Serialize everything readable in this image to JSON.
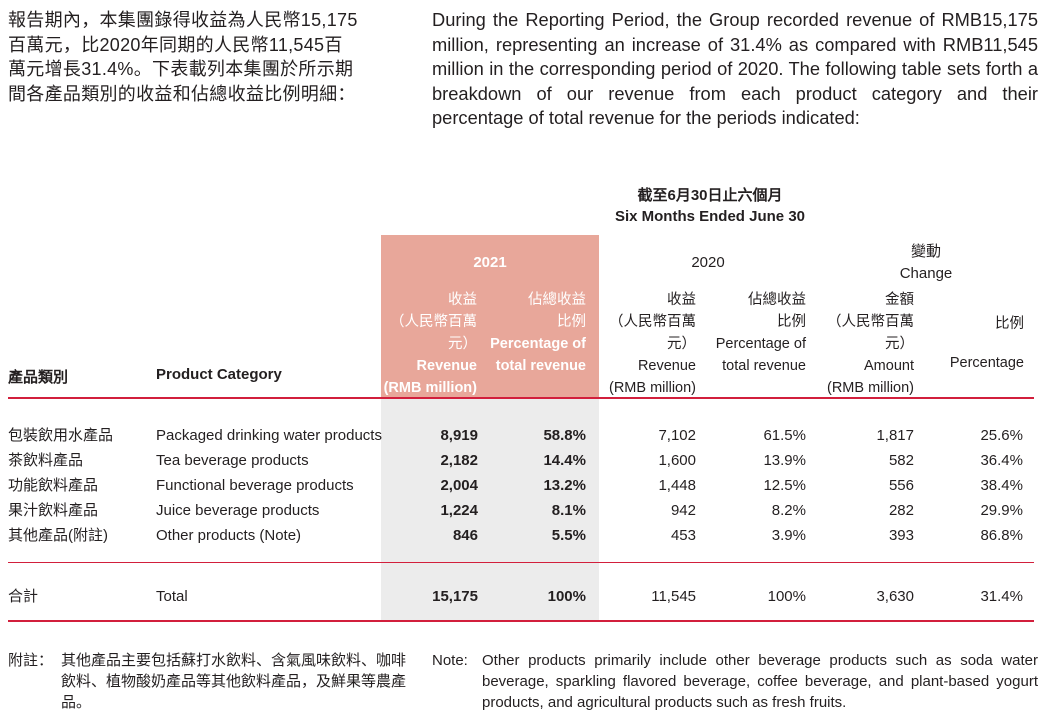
{
  "intro": {
    "zh": "報告期內，本集團錄得收益為人民幣15,175\n百萬元，比2020年同期的人民幣11,545百\n萬元增長31.4%。下表載列本集團於所示期\n間各產品類別的收益和佔總收益比例明細：",
    "en": "During the Reporting Period, the Group recorded revenue of RMB15,175 million, representing an increase of 31.4% as compared with RMB11,545 million in the corresponding period of 2020. The following table sets forth a breakdown of our revenue from each product category and their percentage of total revenue for the periods indicated:"
  },
  "table": {
    "period_zh": "截至6月30日止六個月",
    "period_en": "Six Months Ended June 30",
    "year_2021": "2021",
    "year_2020": "2020",
    "change_zh": "變動",
    "change_en": "Change",
    "col_category_zh": "產品類別",
    "col_category_en": "Product Category",
    "col_revenue": {
      "zh1": "收益",
      "zh2": "（人民幣百萬元）",
      "en1": "Revenue",
      "en2": "(RMB million)"
    },
    "col_percentage": {
      "zh1": "佔總收益",
      "zh2": "比例",
      "en1": "Percentage of",
      "en2": "total revenue"
    },
    "col_amount": {
      "zh1": "金額",
      "zh2": "（人民幣百萬元）",
      "en1": "Amount",
      "en2": "(RMB million)"
    },
    "col_pct_change": {
      "zh": "比例",
      "en": "Percentage"
    },
    "rows": [
      {
        "zh": "包裝飲用水產品",
        "en": "Packaged drinking water products",
        "rev2021": "8,919",
        "pct2021": "58.8%",
        "rev2020": "7,102",
        "pct2020": "61.5%",
        "amount": "1,817",
        "change": "25.6%"
      },
      {
        "zh": "茶飲料產品",
        "en": "Tea beverage products",
        "rev2021": "2,182",
        "pct2021": "14.4%",
        "rev2020": "1,600",
        "pct2020": "13.9%",
        "amount": "582",
        "change": "36.4%"
      },
      {
        "zh": "功能飲料產品",
        "en": "Functional beverage products",
        "rev2021": "2,004",
        "pct2021": "13.2%",
        "rev2020": "1,448",
        "pct2020": "12.5%",
        "amount": "556",
        "change": "38.4%"
      },
      {
        "zh": "果汁飲料產品",
        "en": "Juice beverage products",
        "rev2021": "1,224",
        "pct2021": "8.1%",
        "rev2020": "942",
        "pct2020": "8.2%",
        "amount": "282",
        "change": "29.9%"
      },
      {
        "zh": "其他產品(附註)",
        "en": "Other products (Note)",
        "rev2021": "846",
        "pct2021": "5.5%",
        "rev2020": "453",
        "pct2020": "3.9%",
        "amount": "393",
        "change": "86.8%"
      }
    ],
    "total": {
      "zh": "合計",
      "en": "Total",
      "rev2021": "15,175",
      "pct2021": "100%",
      "rev2020": "11,545",
      "pct2020": "100%",
      "amount": "3,630",
      "change": "31.4%"
    }
  },
  "note": {
    "zh_label": "附註：",
    "zh": "其他產品主要包括蘇打水飲料、含氣風味飲料、咖啡飲料、植物酸奶產品等其他飲料產品，及鮮果等農產品。",
    "en_label": "Note:",
    "en": "Other products primarily include other beverage products such as soda water beverage, sparkling flavored beverage, coffee beverage, and plant-based yogurt products, and agricultural products such as fresh fruits."
  },
  "colors": {
    "highlight_2021": "#e8a79a",
    "rule_red": "#d21f3c",
    "body_shade": "#ececec"
  }
}
